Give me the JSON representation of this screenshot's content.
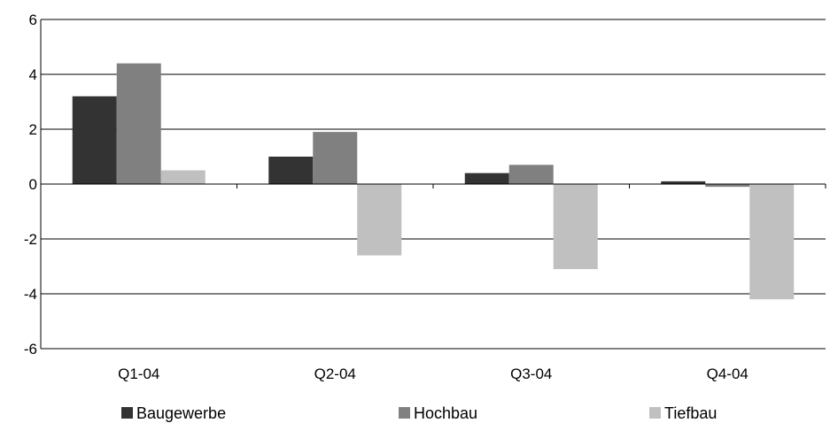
{
  "chart_data": {
    "type": "bar",
    "categories": [
      "Q1-04",
      "Q2-04",
      "Q3-04",
      "Q4-04"
    ],
    "series": [
      {
        "name": "Baugewerbe",
        "values": [
          3.2,
          1.0,
          0.4,
          0.1
        ],
        "color": "#333333"
      },
      {
        "name": "Hochbau",
        "values": [
          4.4,
          1.9,
          0.7,
          -0.1
        ],
        "color": "#808080"
      },
      {
        "name": "Tiefbau",
        "values": [
          0.5,
          -2.6,
          -3.1,
          -4.2
        ],
        "color": "#c0c0c0"
      }
    ],
    "ylim": [
      -6,
      6
    ],
    "yticks": [
      6,
      4,
      2,
      0,
      -2,
      -4,
      -6
    ],
    "grid": true,
    "legend": "bottom"
  }
}
